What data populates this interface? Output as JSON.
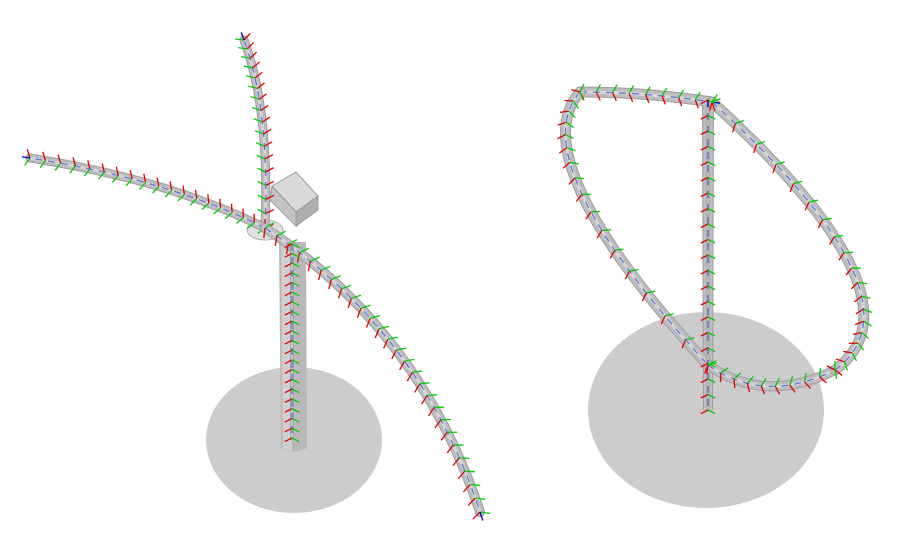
{
  "figure": {
    "panels": [
      {
        "name": "hawt",
        "kind": "horizontal-axis-turbine"
      },
      {
        "name": "vawt",
        "kind": "vertical-axis-darrieus-turbine"
      }
    ],
    "colors": {
      "background": "#ffffff",
      "ground": "#cccccc",
      "structure": "#bdbdbd",
      "structure_light": "#d6d6d6",
      "structure_dark": "#9e9e9e",
      "frame_x": "#e00000",
      "frame_y": "#00cc00",
      "frame_z": "#0000cc",
      "centerline": "#5a6fe0"
    }
  }
}
